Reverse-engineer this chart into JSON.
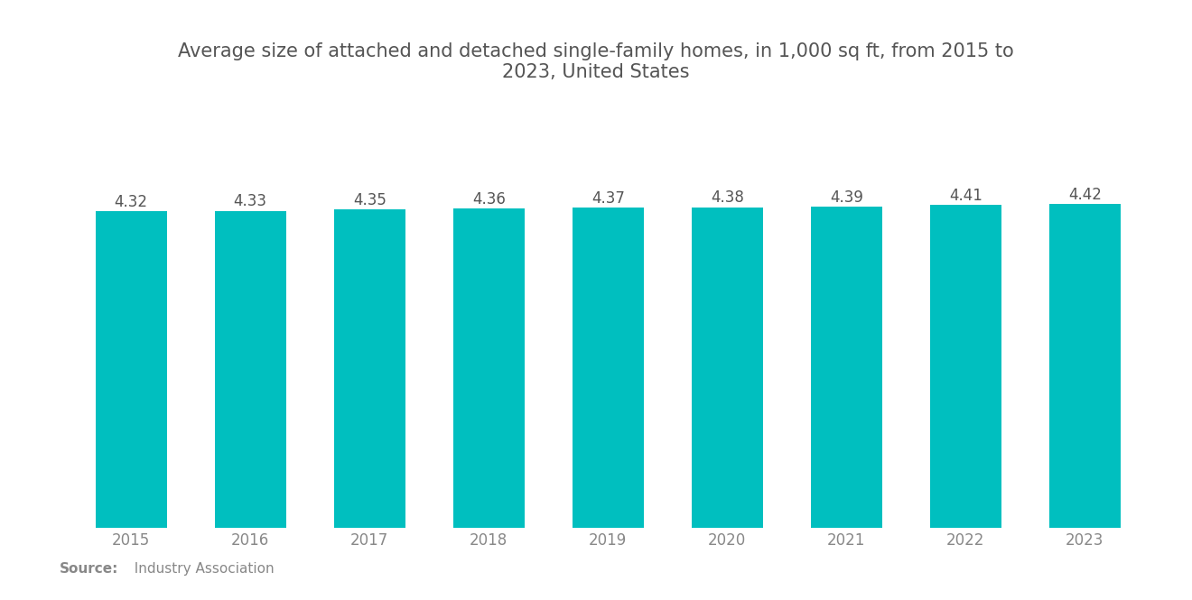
{
  "title": "Average size of attached and detached single-family homes, in 1,000 sq ft, from 2015 to\n2023, United States",
  "years": [
    "2015",
    "2016",
    "2017",
    "2018",
    "2019",
    "2020",
    "2021",
    "2022",
    "2023"
  ],
  "values": [
    4.32,
    4.33,
    4.35,
    4.36,
    4.37,
    4.38,
    4.39,
    4.41,
    4.42
  ],
  "bar_color": "#00BFBF",
  "background_color": "#FFFFFF",
  "title_color": "#555555",
  "label_color": "#555555",
  "tick_color": "#888888",
  "source_bold": "Source:",
  "source_normal": "  Industry Association",
  "ylim_min": 0,
  "ylim_max": 4.75,
  "bar_width": 0.6,
  "value_fontsize": 12,
  "title_fontsize": 15,
  "tick_fontsize": 12,
  "source_fontsize": 11
}
